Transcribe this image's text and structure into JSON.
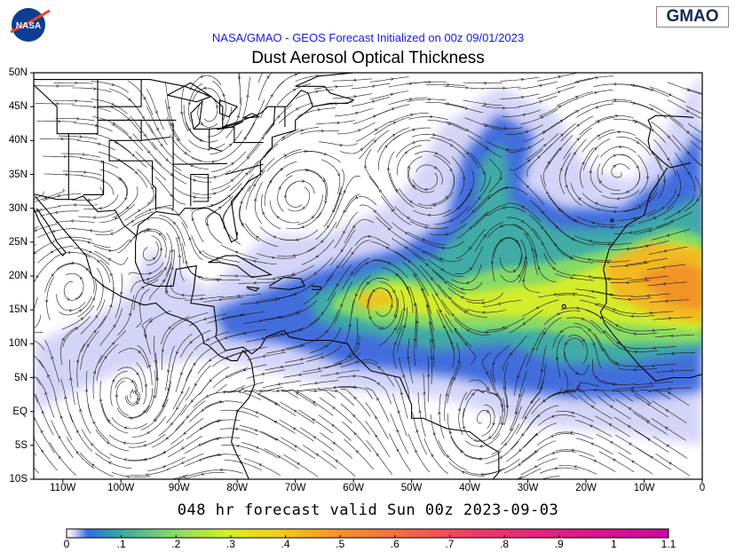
{
  "header": {
    "logo_left": "NASA",
    "logo_right": "GMAO",
    "subtitle": "NASA/GMAO - GEOS Forecast Initialized on 00z 09/01/2023",
    "title": "Dust Aerosol Optical Thickness"
  },
  "map": {
    "lat_labels": [
      "50N",
      "45N",
      "40N",
      "35N",
      "30N",
      "25N",
      "20N",
      "15N",
      "10N",
      "5N",
      "EQ",
      "5S",
      "10S"
    ],
    "lon_labels": [
      "110W",
      "100W",
      "90W",
      "80W",
      "70W",
      "60W",
      "50W",
      "40W",
      "30W",
      "20W",
      "10W",
      "0"
    ],
    "extent": {
      "lon": [
        -115,
        0
      ],
      "lat": [
        -10,
        50
      ]
    },
    "field": "dust aerosol optical thickness with wind streamlines"
  },
  "footer": {
    "valid_text": "048 hr forecast valid Sun 00z 2023-09-03"
  },
  "colorbar": {
    "ticks": [
      "0",
      ".1",
      ".2",
      ".3",
      ".4",
      ".5",
      ".6",
      ".7",
      ".8",
      ".9",
      "1",
      "1.1"
    ],
    "range": [
      0,
      1.1
    ],
    "colors": [
      "#ffffff",
      "#c8c8f8",
      "#2f6fe0",
      "#3aa6a0",
      "#7fd86a",
      "#d8f020",
      "#f5c81a",
      "#f7922a",
      "#f5604a",
      "#ec3a6a",
      "#dc1a88",
      "#c80aa0"
    ]
  }
}
